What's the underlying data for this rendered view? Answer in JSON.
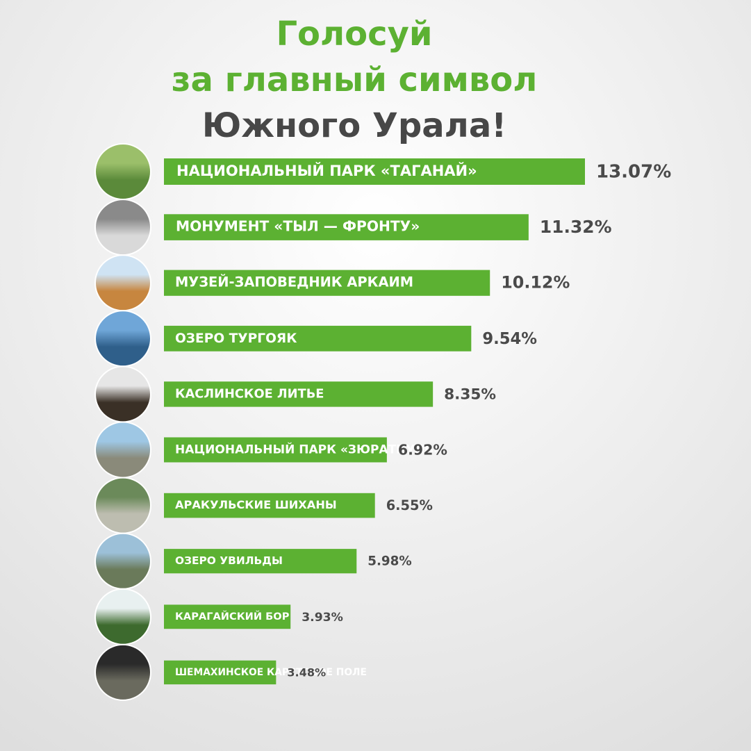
{
  "chart_data": {
    "type": "hbar",
    "title_lines": [
      "Голосуй",
      "за главный символ",
      "Южного Урала!"
    ],
    "title_colors": [
      "#5cb132",
      "#5cb132",
      "#474747"
    ],
    "categories": [
      "НАЦИОНАЛЬНЫЙ ПАРК «ТАГАНАЙ»",
      "МОНУМЕНТ «ТЫЛ — ФРОНТУ»",
      "МУЗЕЙ-ЗАПОВЕДНИК АРКАИМ",
      "ОЗЕРО ТУРГОЯК",
      "КАСЛИНСКОЕ ЛИТЬЕ",
      "НАЦИОНАЛЬНЫЙ ПАРК «ЗЮРАТКУЛЬ»",
      "АРАКУЛЬСКИЕ ШИХАНЫ",
      "ОЗЕРО УВИЛЬДЫ",
      "КАРАГАЙСКИЙ БОР",
      "ШЕМАХИНСКОЕ КАРСТОВОЕ ПОЛЕ"
    ],
    "values": [
      13.07,
      11.32,
      10.12,
      9.54,
      8.35,
      6.92,
      6.55,
      5.98,
      3.93,
      3.48
    ],
    "value_labels": [
      "13.07%",
      "11.32%",
      "10.12%",
      "9.54%",
      "8.35%",
      "6.92%",
      "6.55%",
      "5.98%",
      "3.93%",
      "3.48%"
    ],
    "color": "#5cb132"
  }
}
